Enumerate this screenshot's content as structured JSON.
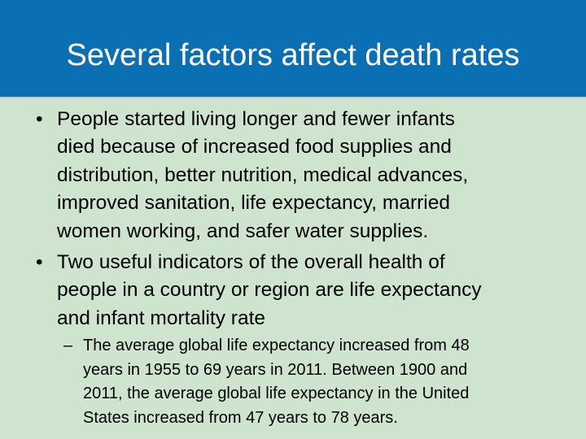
{
  "slide": {
    "title": "Several factors affect death rates",
    "bullet_symbol": "•",
    "sub_bullet_symbol": "–",
    "bullets": [
      {
        "lines": [
          "People started living longer and fewer infants",
          "died because of increased food supplies and",
          "distribution, better nutrition, medical advances,",
          "improved sanitation, life expectancy, married",
          "women working, and safer water supplies."
        ]
      },
      {
        "lines": [
          "Two useful indicators of the overall health of",
          "people in a country or region are life expectancy",
          "and infant mortality rate"
        ]
      }
    ],
    "sub_bullets": [
      {
        "lines": [
          "The average global life expectancy increased from 48",
          "years in 1955 to 69 years in 2011. Between 1900 and",
          "2011, the average global life expectancy in the United",
          "States increased from 47 years to 78 years."
        ]
      }
    ],
    "colors": {
      "header_background": "#0b6fb4",
      "body_background": "#cfe4cf",
      "title_text": "#ffffff",
      "body_text": "#000000"
    }
  }
}
